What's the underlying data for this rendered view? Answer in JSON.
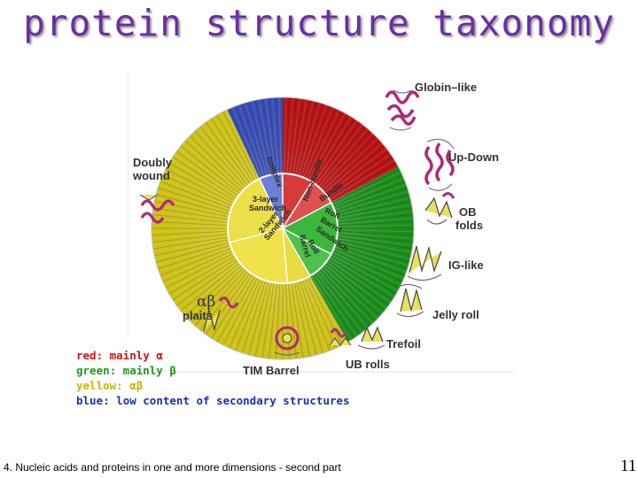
{
  "title": "protein structure taxonomy",
  "legend": [
    {
      "label": "red:",
      "text": " mainly α",
      "color": "#c81414"
    },
    {
      "label": "green:",
      "text": " mainly β",
      "color": "#1e9a1e"
    },
    {
      "label": "yellow:",
      "text": " αβ",
      "color": "#c8b400"
    },
    {
      "label": "blue:",
      "text": " low content of secondary structures",
      "color": "#1c2fb8"
    }
  ],
  "diagram": {
    "labels": {
      "globin": "Globin–like",
      "updown": "Up-Down",
      "ob1": "OB",
      "ob2": "folds",
      "ig": "IG-like",
      "jelly": "Jelly roll",
      "trefoil": "Trefoil",
      "ub": "UB rolls",
      "tim": "TIM Barrel",
      "ab1": "αβ",
      "ab2": "plaits",
      "dw1": "Doubly",
      "dw2": "wound"
    },
    "segments": {
      "complex": "complex",
      "nonbundle": "Non-bundle",
      "bundle": "Bundle",
      "rbs1": "Roll",
      "rbs2": "Barrel",
      "rbs3": "Sandwich",
      "roll1": "Roll",
      "roll2": "Barrel",
      "l3_1": "3-layer",
      "l3_2": "Sandwich",
      "l2_1": "2-layer",
      "l2_2": "Sandwich"
    }
  },
  "footer": "4. Nucleic acids and proteins in one and more dimensions - second part",
  "page_number": "11",
  "colors": {
    "title": "#6b2fa3",
    "red": "#c81414",
    "green": "#1e9a1e",
    "yellow": "#e0d21a",
    "blue": "#3d53c4"
  }
}
